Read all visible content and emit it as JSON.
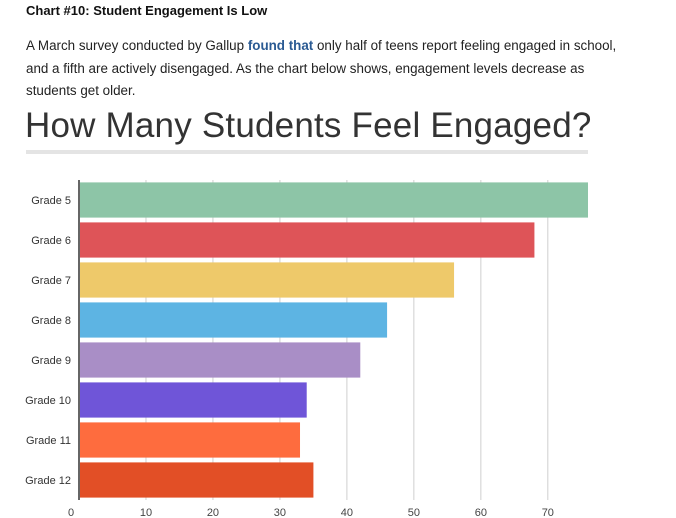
{
  "article": {
    "heading": "Chart #10: Student Engagement Is Low",
    "intro_before_link": "A March survey conducted by Gallup ",
    "intro_link": "found that",
    "intro_after_link": " only half of teens report feeling engaged in school, and a fifth are actively disengaged. As the chart below shows, engagement levels decrease as students get older."
  },
  "chart_data": {
    "type": "bar",
    "orientation": "horizontal",
    "title": "How Many Students Feel Engaged?",
    "xlabel": "",
    "ylabel": "",
    "categories": [
      "Grade 5",
      "Grade 6",
      "Grade 7",
      "Grade 8",
      "Grade 9",
      "Grade 10",
      "Grade 11",
      "Grade 12"
    ],
    "values": [
      76,
      68,
      56,
      46,
      42,
      34,
      33,
      35
    ],
    "colors": [
      "#8dc5a7",
      "#de5458",
      "#eec96a",
      "#5db4e3",
      "#a98ec6",
      "#6f55d8",
      "#fe6c3e",
      "#e24f26"
    ],
    "xlim": [
      0,
      76
    ],
    "xticks": [
      0,
      10,
      20,
      30,
      40,
      50,
      60,
      70
    ],
    "grid": true
  }
}
